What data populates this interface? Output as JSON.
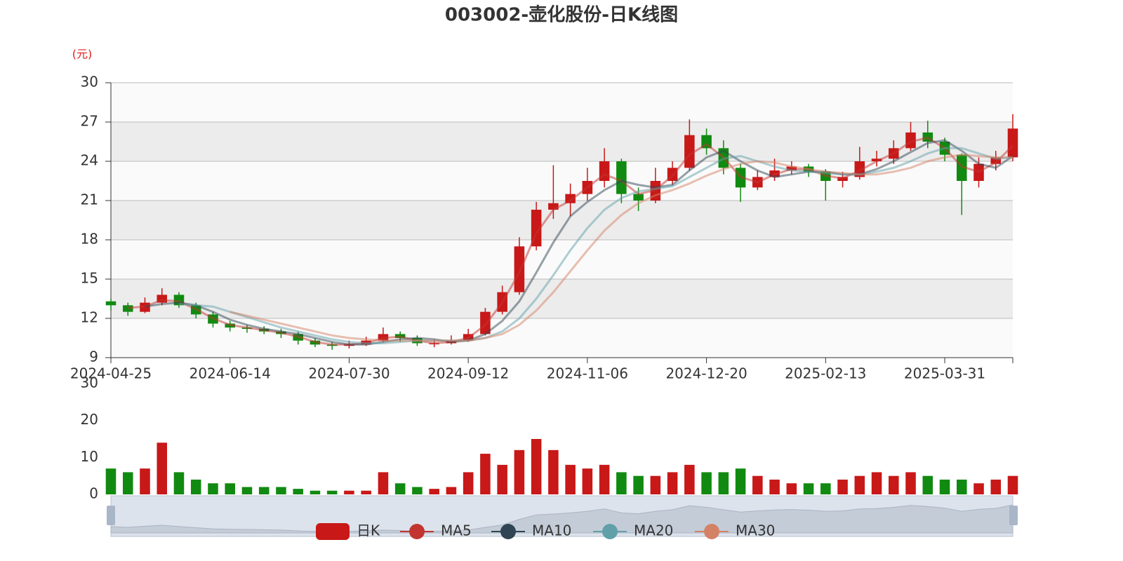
{
  "chart_data": {
    "type": "candlestick",
    "title": "003002-壶化股份-日K线图",
    "y_unit": "(元)",
    "candle_name": "日K",
    "up_color": "#c81818",
    "down_color": "#118a11",
    "categories": [
      "2024-04-25",
      null,
      null,
      null,
      null,
      null,
      null,
      "2024-06-14",
      null,
      null,
      null,
      null,
      null,
      null,
      "2024-07-30",
      null,
      null,
      null,
      null,
      null,
      null,
      "2024-09-12",
      null,
      null,
      null,
      null,
      null,
      null,
      "2024-11-06",
      null,
      null,
      null,
      null,
      null,
      null,
      "2024-12-20",
      null,
      null,
      null,
      null,
      null,
      null,
      "2025-02-13",
      null,
      null,
      null,
      null,
      null,
      null,
      "2025-03-31",
      null,
      null,
      null,
      null
    ],
    "candles": [
      [
        13.3,
        13.0,
        12.6,
        13.5
      ],
      [
        13.0,
        12.5,
        12.2,
        13.2
      ],
      [
        12.5,
        13.2,
        12.4,
        13.6
      ],
      [
        13.2,
        13.8,
        13.0,
        14.3
      ],
      [
        13.8,
        13.0,
        12.8,
        14.0
      ],
      [
        13.0,
        12.3,
        12.0,
        13.2
      ],
      [
        12.3,
        11.6,
        11.3,
        12.5
      ],
      [
        11.6,
        11.3,
        11.0,
        11.8
      ],
      [
        11.3,
        11.2,
        10.9,
        11.5
      ],
      [
        11.2,
        11.0,
        10.8,
        11.4
      ],
      [
        11.0,
        10.8,
        10.5,
        11.2
      ],
      [
        10.8,
        10.3,
        10.0,
        11.0
      ],
      [
        10.3,
        10.0,
        9.8,
        10.5
      ],
      [
        10.0,
        9.9,
        9.6,
        10.2
      ],
      [
        9.9,
        10.0,
        9.7,
        10.3
      ],
      [
        10.0,
        10.3,
        9.9,
        10.6
      ],
      [
        10.3,
        10.8,
        10.2,
        11.3
      ],
      [
        10.8,
        10.5,
        10.2,
        11.0
      ],
      [
        10.5,
        10.1,
        9.9,
        10.7
      ],
      [
        10.1,
        10.1,
        9.8,
        10.4
      ],
      [
        10.1,
        10.3,
        10.0,
        10.7
      ],
      [
        10.3,
        10.8,
        10.2,
        11.2
      ],
      [
        10.8,
        12.5,
        10.7,
        12.8
      ],
      [
        12.5,
        14.0,
        12.3,
        14.5
      ],
      [
        14.0,
        17.5,
        13.8,
        18.2
      ],
      [
        17.5,
        20.3,
        17.2,
        20.9
      ],
      [
        20.3,
        20.8,
        19.6,
        23.7
      ],
      [
        20.8,
        21.5,
        19.8,
        22.3
      ],
      [
        21.5,
        22.5,
        21.0,
        23.5
      ],
      [
        22.5,
        24.0,
        22.0,
        25.0
      ],
      [
        24.0,
        21.5,
        20.8,
        24.2
      ],
      [
        21.5,
        21.0,
        20.2,
        22.0
      ],
      [
        21.0,
        22.5,
        20.8,
        23.5
      ],
      [
        22.5,
        23.5,
        22.2,
        24.0
      ],
      [
        23.5,
        26.0,
        23.3,
        27.2
      ],
      [
        26.0,
        25.0,
        24.5,
        26.5
      ],
      [
        25.0,
        23.5,
        23.0,
        25.6
      ],
      [
        23.5,
        22.0,
        20.9,
        23.8
      ],
      [
        22.0,
        22.8,
        21.8,
        23.3
      ],
      [
        22.8,
        23.3,
        22.5,
        24.2
      ],
      [
        23.3,
        23.6,
        23.0,
        24.0
      ],
      [
        23.6,
        23.2,
        22.8,
        23.8
      ],
      [
        23.2,
        22.5,
        21.0,
        23.4
      ],
      [
        22.5,
        22.8,
        22.0,
        23.2
      ],
      [
        22.8,
        24.0,
        22.6,
        25.1
      ],
      [
        24.0,
        24.2,
        23.6,
        24.8
      ],
      [
        24.2,
        25.0,
        23.8,
        25.6
      ],
      [
        25.0,
        26.2,
        24.8,
        27.0
      ],
      [
        26.2,
        25.5,
        25.0,
        27.1
      ],
      [
        25.5,
        24.5,
        24.0,
        25.8
      ],
      [
        24.5,
        22.5,
        19.9,
        24.6
      ],
      [
        22.5,
        23.8,
        22.0,
        24.3
      ],
      [
        23.8,
        24.3,
        23.3,
        24.8
      ],
      [
        24.3,
        26.5,
        24.0,
        27.6
      ]
    ],
    "ylim": [
      9,
      30
    ],
    "yticks": [
      9,
      12,
      15,
      18,
      21,
      24,
      27,
      30
    ],
    "grid": true,
    "series": [
      {
        "name": "MA5",
        "color": "#c23531",
        "values": [
          null,
          12.8,
          12.9,
          13.4,
          13.3,
          12.7,
          12.0,
          11.5,
          11.3,
          11.1,
          10.9,
          10.6,
          10.2,
          10.0,
          10.0,
          10.1,
          10.5,
          10.6,
          10.3,
          10.1,
          10.2,
          10.5,
          11.5,
          13.2,
          15.5,
          18.5,
          20.3,
          21.0,
          22.0,
          23.0,
          22.5,
          21.5,
          21.8,
          22.9,
          24.5,
          25.3,
          24.3,
          22.8,
          22.4,
          23.0,
          23.4,
          23.4,
          22.9,
          22.7,
          23.3,
          24.0,
          24.6,
          25.5,
          25.8,
          25.0,
          23.6,
          23.2,
          23.9,
          25.2
        ]
      },
      {
        "name": "MA10",
        "color": "#2f4554",
        "values": [
          null,
          null,
          12.9,
          13.1,
          13.2,
          13.0,
          12.5,
          11.9,
          11.5,
          11.2,
          11.0,
          10.8,
          10.5,
          10.2,
          10.0,
          10.0,
          10.2,
          10.4,
          10.5,
          10.4,
          10.2,
          10.3,
          10.8,
          11.8,
          13.3,
          15.5,
          17.8,
          19.8,
          20.9,
          21.8,
          22.5,
          22.2,
          22.0,
          22.2,
          23.3,
          24.3,
          24.8,
          24.0,
          23.3,
          22.8,
          23.0,
          23.2,
          23.2,
          23.0,
          23.0,
          23.4,
          24.0,
          24.7,
          25.4,
          25.6,
          24.8,
          23.8,
          23.5,
          24.4
        ]
      },
      {
        "name": "MA20",
        "color": "#61a0a8",
        "values": [
          null,
          null,
          null,
          null,
          13.1,
          13.0,
          12.9,
          12.5,
          12.1,
          11.7,
          11.3,
          11.0,
          10.7,
          10.4,
          10.2,
          10.1,
          10.1,
          10.2,
          10.3,
          10.3,
          10.3,
          10.3,
          10.5,
          11.0,
          12.0,
          13.5,
          15.3,
          17.2,
          18.9,
          20.3,
          21.2,
          21.7,
          21.9,
          22.1,
          22.8,
          23.5,
          24.2,
          24.4,
          24.0,
          23.6,
          23.3,
          23.2,
          23.1,
          23.0,
          23.0,
          23.2,
          23.5,
          24.0,
          24.6,
          25.0,
          25.0,
          24.6,
          24.2,
          24.3
        ]
      },
      {
        "name": "MA30",
        "color": "#d48265",
        "values": [
          null,
          null,
          null,
          null,
          null,
          null,
          null,
          12.5,
          12.2,
          11.9,
          11.6,
          11.3,
          11.0,
          10.7,
          10.5,
          10.4,
          10.3,
          10.3,
          10.3,
          10.3,
          10.3,
          10.3,
          10.5,
          10.8,
          11.5,
          12.6,
          14.0,
          15.6,
          17.2,
          18.7,
          19.9,
          20.8,
          21.4,
          21.8,
          22.3,
          22.9,
          23.4,
          23.8,
          24.0,
          23.9,
          23.6,
          23.4,
          23.2,
          23.1,
          23.0,
          23.0,
          23.2,
          23.5,
          24.0,
          24.3,
          24.5,
          24.4,
          24.3,
          24.3
        ]
      }
    ],
    "volume": {
      "values": [
        7,
        6,
        7,
        14,
        6,
        4,
        3,
        3,
        2,
        2,
        2,
        1.5,
        1,
        1,
        1,
        1,
        6,
        3,
        2,
        1.5,
        2,
        6,
        11,
        8,
        12,
        15,
        12,
        8,
        7,
        8,
        6,
        5,
        5,
        6,
        8,
        6,
        6,
        7,
        5,
        4,
        3,
        3,
        3,
        4,
        5,
        6,
        5,
        6,
        5,
        4,
        4,
        3,
        4,
        5
      ],
      "ylim": [
        0,
        30
      ],
      "yticks": [
        0,
        10,
        20,
        30
      ]
    },
    "legend": "bottom"
  }
}
